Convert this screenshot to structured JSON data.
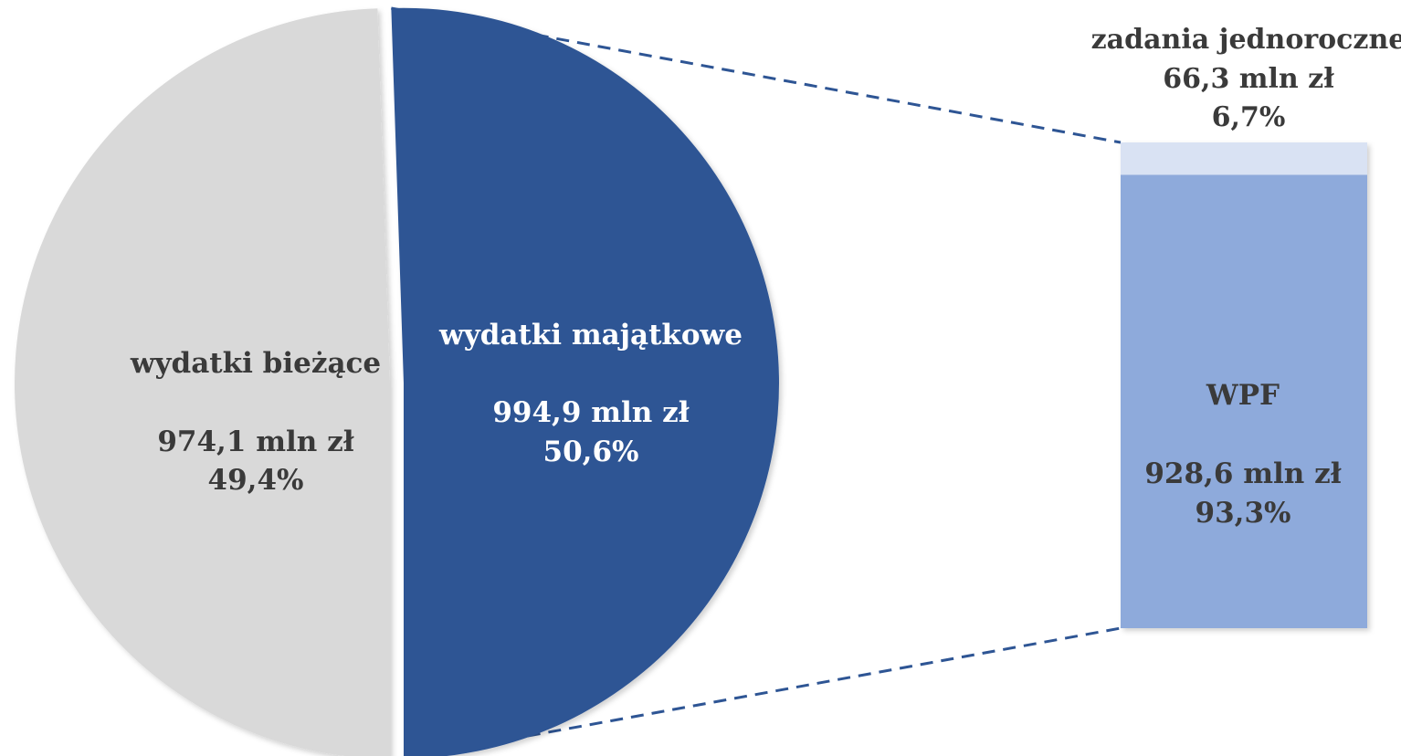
{
  "chart_data": {
    "type": "pie",
    "subtype": "pie-of-bar",
    "unit": "mln zł",
    "pie": {
      "slices": [
        {
          "name": "wydatki bieżące",
          "value": 974.1,
          "value_label": "974,1 mln zł",
          "percent": 49.4,
          "percent_label": "49,4%",
          "color": "#d9d9d9"
        },
        {
          "name": "wydatki majątkowe",
          "value": 994.9,
          "value_label": "994,9 mln zł",
          "percent": 50.6,
          "percent_label": "50,6%",
          "color": "#2e5594"
        }
      ],
      "exploded_slice": "wydatki majątkowe"
    },
    "bar": {
      "source_slice": "wydatki majątkowe",
      "segments": [
        {
          "name": "WPF",
          "value": 928.6,
          "value_label": "928,6 mln zł",
          "percent": 93.3,
          "percent_label": "93,3%",
          "color": "#8eaadb"
        },
        {
          "name": "zadania jednoroczne",
          "value": 66.3,
          "value_label": "66,3 mln zł",
          "percent": 6.7,
          "percent_label": "6,7%",
          "color": "#d9e2f3"
        }
      ]
    },
    "connector": {
      "style": "dashed",
      "color": "#2e5594"
    }
  }
}
